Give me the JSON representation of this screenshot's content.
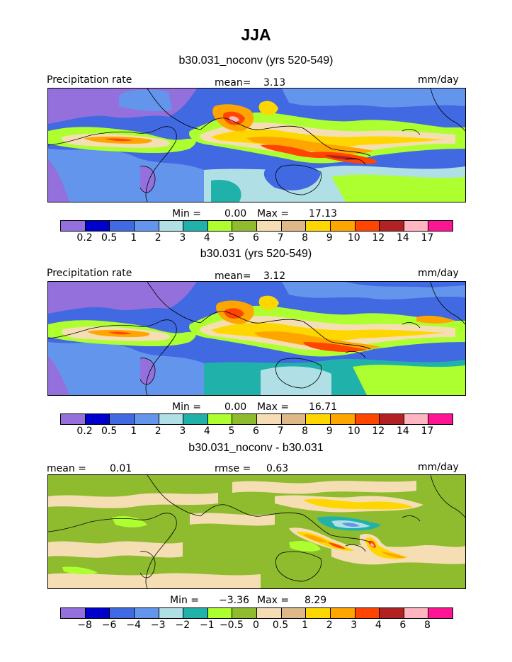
{
  "figure": {
    "title": "JJA"
  },
  "chart_data": [
    {
      "type": "heatmap",
      "title": "b30.031_noconv (yrs 520-549)",
      "variable": "Precipitation rate",
      "units": "mm/day",
      "mean_label": "mean=",
      "mean": "3.13",
      "min_label": "Min =",
      "min": "0.00",
      "max_label": "Max =",
      "max": "17.13",
      "levels": [
        "0.2",
        "0.5",
        "1",
        "2",
        "3",
        "4",
        "5",
        "6",
        "7",
        "8",
        "9",
        "10",
        "12",
        "14",
        "17"
      ],
      "colors": [
        "#9370db",
        "#0000cd",
        "#4169e1",
        "#6495ed",
        "#b0e0e6",
        "#20b2aa",
        "#adff2f",
        "#8fbc2f",
        "#f5deb3",
        "#deb887",
        "#ffd700",
        "#ffa500",
        "#ff4500",
        "#b22222",
        "#ffb6c1",
        "#ff1493"
      ]
    },
    {
      "type": "heatmap",
      "title": "b30.031 (yrs 520-549)",
      "variable": "Precipitation rate",
      "units": "mm/day",
      "mean_label": "mean=",
      "mean": "3.12",
      "min_label": "Min =",
      "min": "0.00",
      "max_label": "Max =",
      "max": "16.71",
      "levels": [
        "0.2",
        "0.5",
        "1",
        "2",
        "3",
        "4",
        "5",
        "6",
        "7",
        "8",
        "9",
        "10",
        "12",
        "14",
        "17"
      ],
      "colors": [
        "#9370db",
        "#0000cd",
        "#4169e1",
        "#6495ed",
        "#b0e0e6",
        "#20b2aa",
        "#adff2f",
        "#8fbc2f",
        "#f5deb3",
        "#deb887",
        "#ffd700",
        "#ffa500",
        "#ff4500",
        "#b22222",
        "#ffb6c1",
        "#ff1493"
      ]
    },
    {
      "type": "heatmap",
      "title": "b30.031_noconv - b30.031",
      "units": "mm/day",
      "mean_label": "mean =",
      "mean": "0.01",
      "rmse_label": "rmse =",
      "rmse": "0.63",
      "min_label": "Min =",
      "min": "−3.36",
      "max_label": "Max =",
      "max": "8.29",
      "levels": [
        "−8",
        "−6",
        "−4",
        "−3",
        "−2",
        "−1",
        "−0.5",
        "0",
        "0.5",
        "1",
        "2",
        "3",
        "4",
        "6",
        "8"
      ],
      "colors": [
        "#9370db",
        "#0000cd",
        "#4169e1",
        "#6495ed",
        "#b0e0e6",
        "#20b2aa",
        "#adff2f",
        "#8fbc2f",
        "#f5deb3",
        "#deb887",
        "#ffd700",
        "#ffa500",
        "#ff4500",
        "#b22222",
        "#ffb6c1",
        "#ff1493"
      ]
    }
  ]
}
